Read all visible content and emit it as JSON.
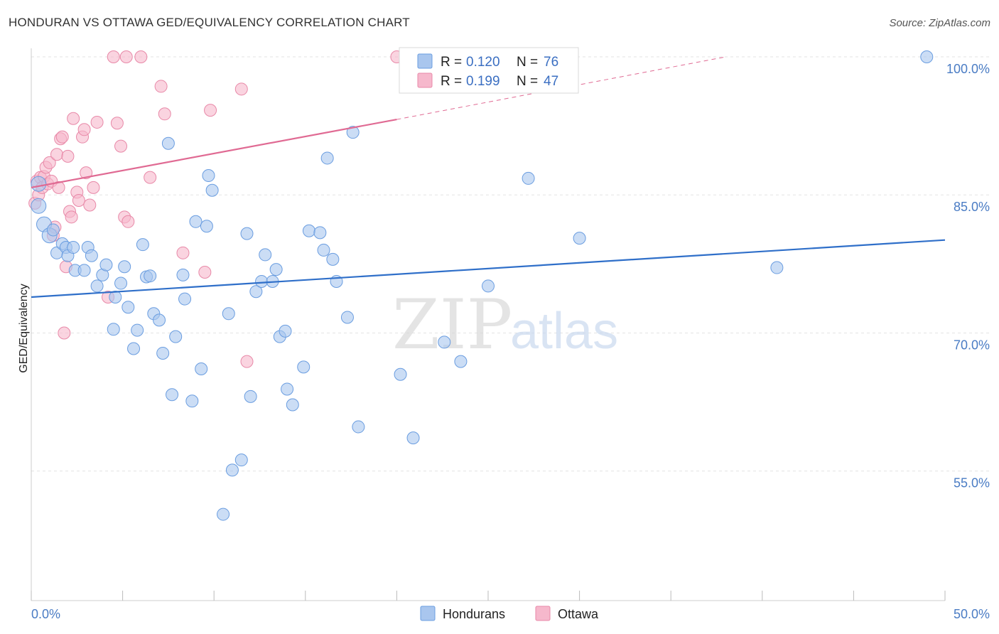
{
  "title": "HONDURAN VS OTTAWA GED/EQUIVALENCY CORRELATION CHART",
  "source": "Source: ZipAtlas.com",
  "watermark": {
    "zip": "ZIP",
    "atlas": "atlas"
  },
  "colors": {
    "blue_fill": "#a9c6ee",
    "blue_stroke": "#6a9de0",
    "blue_line": "#2f6fc9",
    "pink_fill": "#f6b8cc",
    "pink_stroke": "#e889a8",
    "pink_line": "#e06a93",
    "tick_text": "#4a7cc4",
    "grid": "#e3e3e3"
  },
  "legend": {
    "r_label": "R =",
    "n_label": "N =",
    "rows": [
      {
        "r": "0.120",
        "n": "76",
        "series": "blue"
      },
      {
        "r": "0.199",
        "n": "47",
        "series": "pink"
      }
    ]
  },
  "chart_data": {
    "type": "scatter",
    "title": "HONDURAN VS OTTAWA GED/EQUIVALENCY CORRELATION CHART",
    "xlabel": "",
    "ylabel": "GED/Equivalency",
    "xlim": [
      0,
      50
    ],
    "ylim": [
      41,
      101
    ],
    "x_tick_labels": [
      {
        "value": 0,
        "label": "0.0%"
      },
      {
        "value": 50,
        "label": "50.0%"
      }
    ],
    "y_tick_labels": [
      {
        "value": 100,
        "label": "100.0%"
      },
      {
        "value": 85,
        "label": "85.0%"
      },
      {
        "value": 70,
        "label": "70.0%"
      },
      {
        "value": 55,
        "label": "55.0%"
      }
    ],
    "grid": true,
    "legend_position": "top-center",
    "series": [
      {
        "name": "Hondurans",
        "color": "#a9c6ee",
        "trend": {
          "x": [
            0,
            50
          ],
          "y": [
            73.9,
            80.1
          ]
        },
        "points": [
          [
            0.4,
            86.2
          ],
          [
            0.4,
            83.8
          ],
          [
            0.7,
            81.8
          ],
          [
            1.0,
            80.6
          ],
          [
            1.2,
            81.2
          ],
          [
            1.4,
            78.7
          ],
          [
            1.7,
            79.7
          ],
          [
            1.9,
            79.3
          ],
          [
            2.0,
            78.4
          ],
          [
            2.3,
            79.3
          ],
          [
            2.4,
            76.8
          ],
          [
            2.9,
            76.8
          ],
          [
            3.1,
            79.3
          ],
          [
            3.3,
            78.4
          ],
          [
            3.6,
            75.1
          ],
          [
            3.9,
            76.3
          ],
          [
            4.1,
            77.4
          ],
          [
            4.5,
            70.4
          ],
          [
            4.6,
            73.9
          ],
          [
            4.9,
            75.4
          ],
          [
            5.1,
            77.2
          ],
          [
            5.3,
            72.8
          ],
          [
            5.6,
            68.3
          ],
          [
            5.8,
            70.3
          ],
          [
            6.1,
            79.6
          ],
          [
            6.3,
            76.1
          ],
          [
            6.5,
            76.2
          ],
          [
            6.7,
            72.1
          ],
          [
            7.0,
            71.4
          ],
          [
            7.2,
            67.8
          ],
          [
            7.5,
            90.6
          ],
          [
            7.7,
            63.3
          ],
          [
            7.9,
            69.6
          ],
          [
            8.3,
            76.3
          ],
          [
            8.4,
            73.7
          ],
          [
            8.8,
            62.6
          ],
          [
            9.0,
            82.1
          ],
          [
            9.3,
            66.1
          ],
          [
            9.6,
            81.6
          ],
          [
            9.7,
            87.1
          ],
          [
            9.9,
            85.5
          ],
          [
            10.5,
            50.3
          ],
          [
            10.8,
            72.1
          ],
          [
            11.0,
            55.1
          ],
          [
            11.5,
            56.2
          ],
          [
            11.8,
            80.8
          ],
          [
            12.0,
            63.1
          ],
          [
            12.3,
            74.5
          ],
          [
            12.6,
            75.6
          ],
          [
            12.8,
            78.5
          ],
          [
            13.2,
            75.6
          ],
          [
            13.4,
            76.9
          ],
          [
            13.6,
            69.6
          ],
          [
            13.9,
            70.2
          ],
          [
            14.0,
            63.9
          ],
          [
            14.3,
            62.2
          ],
          [
            14.9,
            66.3
          ],
          [
            15.2,
            81.1
          ],
          [
            15.8,
            80.9
          ],
          [
            16.0,
            79.0
          ],
          [
            16.2,
            89.0
          ],
          [
            16.5,
            78.0
          ],
          [
            16.7,
            75.6
          ],
          [
            17.3,
            71.7
          ],
          [
            17.6,
            91.8
          ],
          [
            17.9,
            59.8
          ],
          [
            20.2,
            65.5
          ],
          [
            20.9,
            58.6
          ],
          [
            22.6,
            69.0
          ],
          [
            23.5,
            66.9
          ],
          [
            25.0,
            75.1
          ],
          [
            27.2,
            86.8
          ],
          [
            30.0,
            80.3
          ],
          [
            40.8,
            77.1
          ],
          [
            49.0,
            100.0
          ],
          [
            28.3,
            100.0
          ]
        ]
      },
      {
        "name": "Ottawa",
        "color": "#f6b8cc",
        "trend": {
          "x": [
            0,
            20
          ],
          "y": [
            85.8,
            93.2
          ]
        },
        "trend_dashed": {
          "x": [
            20,
            38
          ],
          "y": [
            93.2,
            100.0
          ]
        },
        "points": [
          [
            0.2,
            84.1
          ],
          [
            0.3,
            86.5
          ],
          [
            0.4,
            85.0
          ],
          [
            0.5,
            86.9
          ],
          [
            0.6,
            85.8
          ],
          [
            0.7,
            87.0
          ],
          [
            0.8,
            88.0
          ],
          [
            0.9,
            86.2
          ],
          [
            1.0,
            88.5
          ],
          [
            1.1,
            86.5
          ],
          [
            1.2,
            80.6
          ],
          [
            1.3,
            81.5
          ],
          [
            1.4,
            89.4
          ],
          [
            1.5,
            85.8
          ],
          [
            1.6,
            91.1
          ],
          [
            1.7,
            91.3
          ],
          [
            1.8,
            70.0
          ],
          [
            1.9,
            77.2
          ],
          [
            2.0,
            89.2
          ],
          [
            2.1,
            83.2
          ],
          [
            2.2,
            82.6
          ],
          [
            2.3,
            93.3
          ],
          [
            2.5,
            85.3
          ],
          [
            2.6,
            84.4
          ],
          [
            2.8,
            91.3
          ],
          [
            2.9,
            92.1
          ],
          [
            3.0,
            87.4
          ],
          [
            3.2,
            83.9
          ],
          [
            3.4,
            85.8
          ],
          [
            3.6,
            92.9
          ],
          [
            4.2,
            73.9
          ],
          [
            4.7,
            92.8
          ],
          [
            4.9,
            90.3
          ],
          [
            5.1,
            82.6
          ],
          [
            5.3,
            82.1
          ],
          [
            6.5,
            86.9
          ],
          [
            7.1,
            96.8
          ],
          [
            7.3,
            93.8
          ],
          [
            8.3,
            78.7
          ],
          [
            9.5,
            76.6
          ],
          [
            9.8,
            94.2
          ],
          [
            11.5,
            96.5
          ],
          [
            11.8,
            66.9
          ],
          [
            4.5,
            100.0
          ],
          [
            5.2,
            100.0
          ],
          [
            6.0,
            100.0
          ],
          [
            20.0,
            100.0
          ]
        ]
      }
    ]
  }
}
